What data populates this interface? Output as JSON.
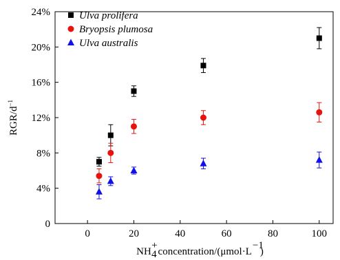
{
  "chart_data": {
    "type": "scatter",
    "xlabel_text": "NH concentration/(μmol·L",
    "xlabel_sup_plus": "+",
    "xlabel_sub_4": "4",
    "xlabel_sup_minus1": "−1",
    "xlabel_close": ")",
    "ylabel_text": "RGR/d",
    "ylabel_sup": "−1",
    "xlim": [
      -14,
      106
    ],
    "ylim": [
      0,
      24
    ],
    "x_ticks": [
      0,
      20,
      40,
      60,
      80,
      100
    ],
    "x_tick_labels": [
      "0",
      "20",
      "40",
      "60",
      "80",
      "100"
    ],
    "y_ticks": [
      0,
      4,
      8,
      12,
      16,
      20,
      24
    ],
    "y_tick_labels": [
      "0",
      "4%",
      "8%",
      "12%",
      "16%",
      "20%",
      "24%"
    ],
    "legend_position": "top-left",
    "series": [
      {
        "name": "Ulva prolifera",
        "color": "#000000",
        "marker": "square",
        "x": [
          5,
          10,
          20,
          50,
          100
        ],
        "y": [
          7.0,
          10.0,
          15.0,
          17.9,
          21.0
        ],
        "err": [
          0.5,
          1.2,
          0.6,
          0.8,
          1.2
        ]
      },
      {
        "name": "Bryopsis plumosa",
        "color": "#e8130f",
        "marker": "circle",
        "x": [
          5,
          10,
          20,
          50,
          100
        ],
        "y": [
          5.4,
          8.0,
          11.0,
          12.0,
          12.6
        ],
        "err": [
          0.8,
          1.1,
          0.8,
          0.8,
          1.1
        ]
      },
      {
        "name": "Ulva australis",
        "color": "#1010e8",
        "marker": "triangle",
        "x": [
          5,
          10,
          20,
          50,
          100
        ],
        "y": [
          3.6,
          4.8,
          6.0,
          6.8,
          7.2
        ],
        "err": [
          0.8,
          0.5,
          0.4,
          0.6,
          0.9
        ]
      }
    ]
  }
}
